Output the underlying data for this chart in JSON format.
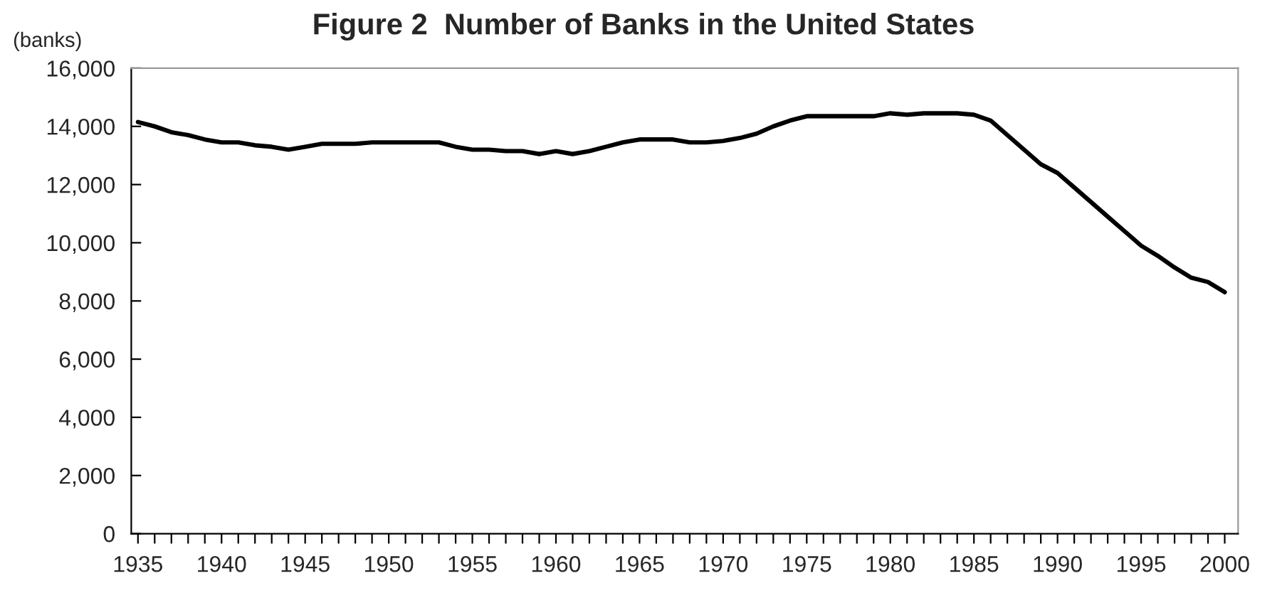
{
  "chart_data": {
    "type": "line",
    "title": "Figure 2  Number of Banks in the United States",
    "ylabel": "(banks)",
    "x": [
      1935,
      1936,
      1937,
      1938,
      1939,
      1940,
      1941,
      1942,
      1943,
      1944,
      1945,
      1946,
      1947,
      1948,
      1949,
      1950,
      1951,
      1952,
      1953,
      1954,
      1955,
      1956,
      1957,
      1958,
      1959,
      1960,
      1961,
      1962,
      1963,
      1964,
      1965,
      1966,
      1967,
      1968,
      1969,
      1970,
      1971,
      1972,
      1973,
      1974,
      1975,
      1976,
      1977,
      1978,
      1979,
      1980,
      1981,
      1982,
      1983,
      1984,
      1985,
      1986,
      1987,
      1988,
      1989,
      1990,
      1991,
      1992,
      1993,
      1994,
      1995,
      1996,
      1997,
      1998,
      1999,
      2000
    ],
    "series": [
      {
        "color": "#000000",
        "values": [
          14150,
          14000,
          13800,
          13700,
          13550,
          13450,
          13450,
          13350,
          13300,
          13200,
          13300,
          13400,
          13400,
          13400,
          13450,
          13450,
          13450,
          13450,
          13450,
          13300,
          13200,
          13200,
          13150,
          13150,
          13050,
          13150,
          13050,
          13150,
          13300,
          13450,
          13550,
          13550,
          13550,
          13450,
          13450,
          13500,
          13600,
          13750,
          14000,
          14200,
          14350,
          14350,
          14350,
          14350,
          14350,
          14450,
          14400,
          14450,
          14450,
          14450,
          14400,
          14200,
          13700,
          13200,
          12700,
          12400,
          11900,
          11400,
          10900,
          10400,
          9900,
          9550,
          9150,
          8800,
          8650,
          8300
        ]
      }
    ],
    "ylim": [
      0,
      16000
    ],
    "yticks": [
      {
        "value": 0,
        "label": "0"
      },
      {
        "value": 2000,
        "label": "2,000"
      },
      {
        "value": 4000,
        "label": "4,000"
      },
      {
        "value": 6000,
        "label": "6,000"
      },
      {
        "value": 8000,
        "label": "8,000"
      },
      {
        "value": 10000,
        "label": "10,000"
      },
      {
        "value": 12000,
        "label": "12,000"
      },
      {
        "value": 14000,
        "label": "14,000"
      },
      {
        "value": 16000,
        "label": "16,000"
      }
    ],
    "xlim": [
      1934.6,
      2000.8
    ],
    "xticks": [
      1935,
      {
        "value": 1936,
        "label": null
      },
      {
        "value": 1937,
        "label": null
      },
      {
        "value": 1938,
        "label": null
      },
      {
        "value": 1939,
        "label": null
      },
      1940,
      {
        "value": 1941,
        "label": null
      },
      {
        "value": 1942,
        "label": null
      },
      {
        "value": 1943,
        "label": null
      },
      {
        "value": 1944,
        "label": null
      },
      1945,
      {
        "value": 1946,
        "label": null
      },
      {
        "value": 1947,
        "label": null
      },
      {
        "value": 1948,
        "label": null
      },
      {
        "value": 1949,
        "label": null
      },
      1950,
      {
        "value": 1951,
        "label": null
      },
      {
        "value": 1952,
        "label": null
      },
      {
        "value": 1953,
        "label": null
      },
      {
        "value": 1954,
        "label": null
      },
      1955,
      {
        "value": 1956,
        "label": null
      },
      {
        "value": 1957,
        "label": null
      },
      {
        "value": 1958,
        "label": null
      },
      {
        "value": 1959,
        "label": null
      },
      1960,
      {
        "value": 1961,
        "label": null
      },
      {
        "value": 1962,
        "label": null
      },
      {
        "value": 1963,
        "label": null
      },
      {
        "value": 1964,
        "label": null
      },
      1965,
      {
        "value": 1966,
        "label": null
      },
      {
        "value": 1967,
        "label": null
      },
      {
        "value": 1968,
        "label": null
      },
      {
        "value": 1969,
        "label": null
      },
      1970,
      {
        "value": 1971,
        "label": null
      },
      {
        "value": 1972,
        "label": null
      },
      {
        "value": 1973,
        "label": null
      },
      {
        "value": 1974,
        "label": null
      },
      1975,
      {
        "value": 1976,
        "label": null
      },
      {
        "value": 1977,
        "label": null
      },
      {
        "value": 1978,
        "label": null
      },
      {
        "value": 1979,
        "label": null
      },
      1980,
      {
        "value": 1981,
        "label": null
      },
      {
        "value": 1982,
        "label": null
      },
      {
        "value": 1983,
        "label": null
      },
      {
        "value": 1984,
        "label": null
      },
      1985,
      {
        "value": 1986,
        "label": null
      },
      {
        "value": 1987,
        "label": null
      },
      {
        "value": 1988,
        "label": null
      },
      {
        "value": 1989,
        "label": null
      },
      1990,
      {
        "value": 1991,
        "label": null
      },
      {
        "value": 1992,
        "label": null
      },
      {
        "value": 1993,
        "label": null
      },
      {
        "value": 1994,
        "label": null
      },
      1995,
      {
        "value": 1996,
        "label": null
      },
      {
        "value": 1997,
        "label": null
      },
      {
        "value": 1998,
        "label": null
      },
      {
        "value": 1999,
        "label": null
      },
      2000
    ],
    "grid": false,
    "legend": false,
    "marker": "none",
    "line_style": "solid"
  }
}
